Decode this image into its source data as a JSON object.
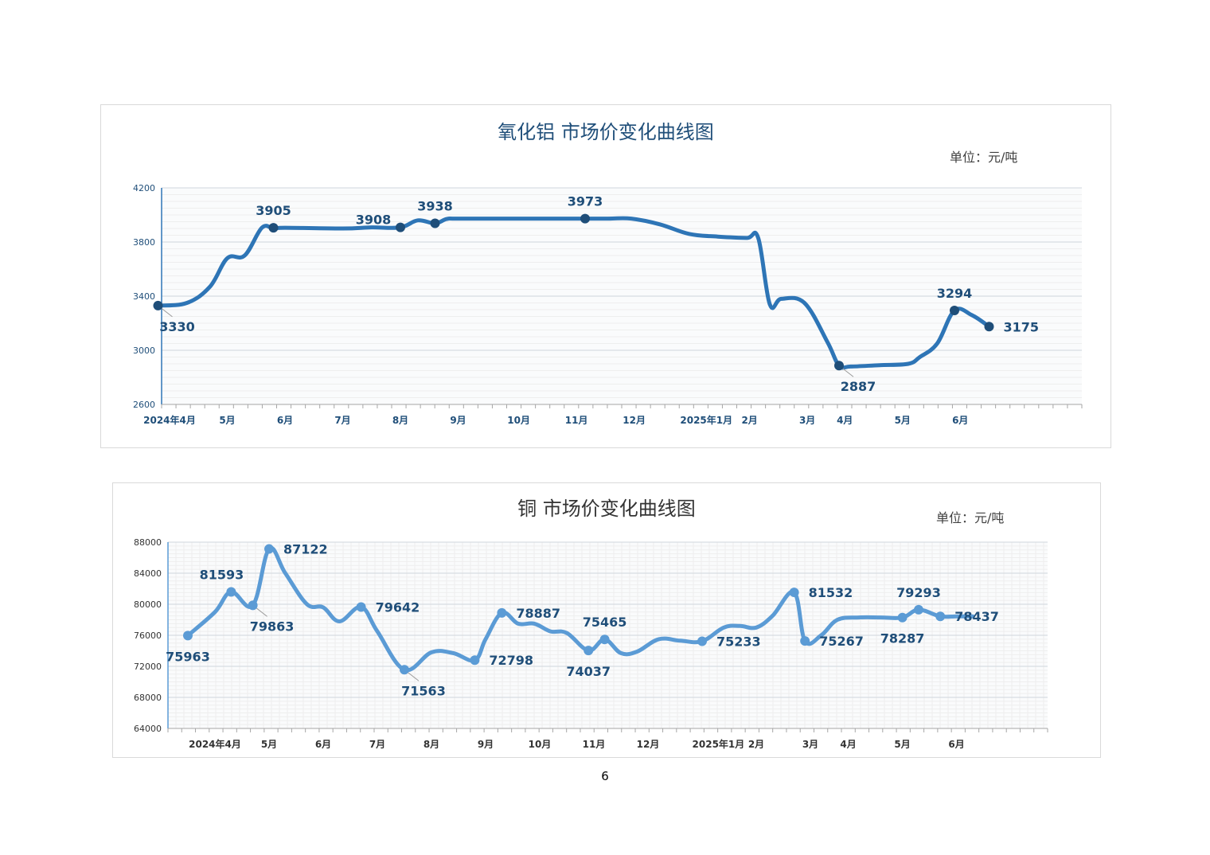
{
  "page": {
    "number": "6"
  },
  "charts": [
    {
      "title": "氧化铝  市场价变化曲线图",
      "unit": "单位：元/吨"
    },
    {
      "title": "铜  市场价变化曲线图",
      "unit": "单位：元/吨"
    }
  ],
  "chart_data": [
    {
      "type": "line",
      "title": "氧化铝  市场价变化曲线图",
      "unit": "单位：元/吨",
      "color": "#2e75b6",
      "marker_color": "#1f4e79",
      "label_color": "#1f4e79",
      "ylim": [
        2600,
        4200
      ],
      "yticks": [
        2600,
        3000,
        3400,
        3800,
        4200
      ],
      "grid": true,
      "month_labels": [
        "2024年4月",
        "5月",
        "6月",
        "7月",
        "8月",
        "9月",
        "10月",
        "11月",
        "12月",
        "2025年1月",
        "2月",
        "3月",
        "4月",
        "5月",
        "6月"
      ],
      "month_positions": [
        0.0,
        1.0,
        2.0,
        3.0,
        4.0,
        5.0,
        6.05,
        7.05,
        8.05,
        9.3,
        10.05,
        11.05,
        11.7,
        12.7,
        13.7
      ],
      "x": [
        -0.2,
        0.3,
        0.7,
        1.0,
        1.3,
        1.6,
        1.8,
        2.0,
        3.0,
        3.5,
        4.0,
        4.3,
        4.6,
        4.8,
        5.0,
        6.0,
        7.0,
        7.6,
        8.0,
        8.5,
        9.0,
        9.5,
        10.0,
        10.2,
        10.4,
        10.6,
        11.0,
        11.4,
        11.6,
        11.8,
        12.3,
        12.8,
        13.0,
        13.3,
        13.6,
        13.9,
        14.2
      ],
      "y": [
        3330,
        3350,
        3470,
        3680,
        3700,
        3905,
        3900,
        3905,
        3900,
        3908,
        3908,
        3960,
        3938,
        3970,
        3973,
        3973,
        3973,
        3973,
        3973,
        3930,
        3860,
        3840,
        3830,
        3830,
        3340,
        3380,
        3350,
        3060,
        2887,
        2880,
        2890,
        2900,
        2950,
        3050,
        3294,
        3260,
        3175
      ],
      "labeled_points": [
        {
          "x": -0.2,
          "y": 3330,
          "label": "3330",
          "pos": "below-right"
        },
        {
          "x": 1.8,
          "y": 3905,
          "label": "3905",
          "pos": "above"
        },
        {
          "x": 4.0,
          "y": 3908,
          "label": "3908",
          "pos": "left"
        },
        {
          "x": 4.6,
          "y": 3938,
          "label": "3938",
          "pos": "above"
        },
        {
          "x": 7.2,
          "y": 3973,
          "label": "3973",
          "pos": "above"
        },
        {
          "x": 11.6,
          "y": 2887,
          "label": "2887",
          "pos": "below-right"
        },
        {
          "x": 13.6,
          "y": 3294,
          "label": "3294",
          "pos": "above"
        },
        {
          "x": 14.2,
          "y": 3175,
          "label": "3175",
          "pos": "right"
        }
      ]
    },
    {
      "type": "line",
      "title": "铜  市场价变化曲线图",
      "unit": "单位：元/吨",
      "color": "#5b9bd5",
      "marker_color": "#5b9bd5",
      "label_color": "#1f4e79",
      "ylim": [
        64000,
        88000
      ],
      "yticks": [
        64000,
        68000,
        72000,
        76000,
        80000,
        84000,
        88000
      ],
      "grid": true,
      "month_labels": [
        "2024年4月",
        "5月",
        "6月",
        "7月",
        "8月",
        "9月",
        "10月",
        "11月",
        "12月",
        "2025年1月",
        "2月",
        "3月",
        "4月",
        "5月",
        "6月"
      ],
      "month_positions": [
        0.0,
        1.0,
        2.0,
        3.0,
        4.0,
        5.0,
        6.0,
        7.0,
        8.0,
        9.3,
        10.0,
        11.0,
        11.7,
        12.7,
        13.7
      ],
      "x": [
        -0.5,
        0.0,
        0.3,
        0.7,
        1.0,
        1.3,
        1.7,
        2.0,
        2.3,
        2.7,
        3.0,
        3.5,
        4.0,
        4.4,
        4.8,
        5.0,
        5.3,
        5.6,
        5.9,
        6.2,
        6.5,
        6.9,
        7.2,
        7.5,
        7.8,
        8.2,
        8.6,
        9.0,
        9.4,
        9.7,
        10.0,
        10.3,
        10.7,
        10.9,
        11.2,
        11.5,
        11.9,
        12.3,
        12.7,
        13.0,
        13.4,
        13.7,
        14.0
      ],
      "y": [
        75963,
        79000,
        81593,
        79863,
        87122,
        84000,
        80000,
        79600,
        77800,
        79642,
        76500,
        71563,
        73800,
        73700,
        72798,
        75500,
        78887,
        77500,
        77500,
        76500,
        76300,
        74037,
        75465,
        73700,
        73900,
        75500,
        75300,
        75233,
        77000,
        77200,
        77000,
        78500,
        81532,
        75267,
        76000,
        78000,
        78300,
        78300,
        78287,
        79293,
        78437,
        78437,
        78437
      ],
      "labeled_points": [
        {
          "x": -0.5,
          "y": 75963,
          "label": "75963",
          "pos": "below"
        },
        {
          "x": 0.3,
          "y": 81593,
          "label": "81593",
          "pos": "above-left"
        },
        {
          "x": 0.7,
          "y": 79863,
          "label": "79863",
          "pos": "below-right"
        },
        {
          "x": 1.0,
          "y": 87122,
          "label": "87122",
          "pos": "right"
        },
        {
          "x": 2.7,
          "y": 79642,
          "label": "79642",
          "pos": "right"
        },
        {
          "x": 3.5,
          "y": 71563,
          "label": "71563",
          "pos": "below-right"
        },
        {
          "x": 4.8,
          "y": 72798,
          "label": "72798",
          "pos": "right"
        },
        {
          "x": 5.3,
          "y": 78887,
          "label": "78887",
          "pos": "right"
        },
        {
          "x": 6.9,
          "y": 74037,
          "label": "74037",
          "pos": "below"
        },
        {
          "x": 7.2,
          "y": 75465,
          "label": "75465",
          "pos": "above"
        },
        {
          "x": 9.0,
          "y": 75233,
          "label": "75233",
          "pos": "right"
        },
        {
          "x": 10.7,
          "y": 81532,
          "label": "81532",
          "pos": "right"
        },
        {
          "x": 10.9,
          "y": 75267,
          "label": "75267",
          "pos": "right"
        },
        {
          "x": 12.7,
          "y": 78287,
          "label": "78287",
          "pos": "below"
        },
        {
          "x": 13.0,
          "y": 79293,
          "label": "79293",
          "pos": "above"
        },
        {
          "x": 13.4,
          "y": 78437,
          "label": "78437",
          "pos": "right"
        }
      ]
    }
  ]
}
